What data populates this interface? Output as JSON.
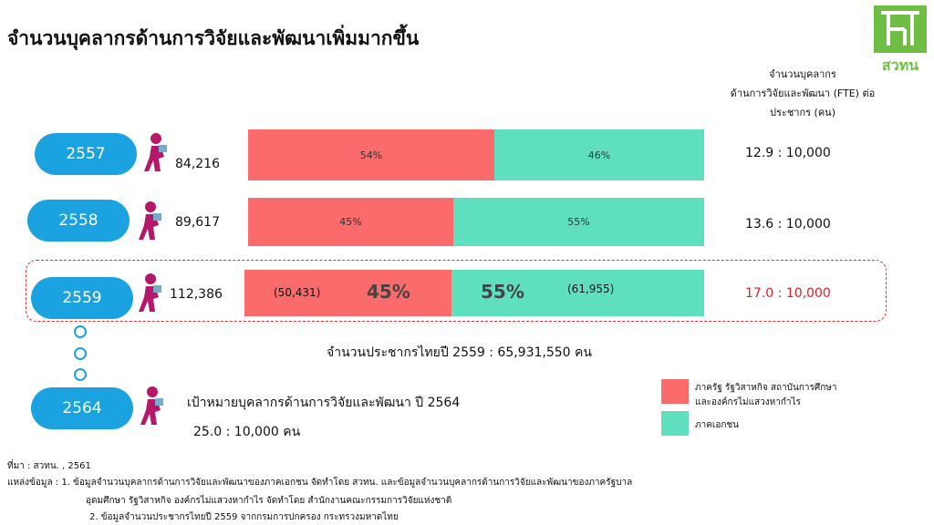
{
  "title": "จำนวนบุคลากรด้านการวิจัยและพัฒนาเพิ่มมากขึ้น",
  "logo": "สวทน",
  "ratio_header": [
    "จำนวนบุคลากร",
    "ด้านการวิจัยและพัฒนา (FTE) ต่อ",
    "ประชากร (คน)"
  ],
  "rows": [
    {
      "year": "2557",
      "total": "84,216",
      "public": 54,
      "public_label": "54%",
      "private": 46,
      "private_label": "46%",
      "ratio": "12.9 : 10,000"
    },
    {
      "year": "2558",
      "total": "89,617",
      "public": 45,
      "public_label": "45%",
      "private": 55,
      "private_label": "55%",
      "ratio": "13.6 : 10,000"
    },
    {
      "year": "2559",
      "total": "112,386",
      "public": 45,
      "public_label": "45%",
      "private": 55,
      "private_label": "55%",
      "public_count": "(50,431)",
      "private_count": "(61,955)",
      "ratio": "17.0 : 10,000"
    }
  ],
  "population": "จำนวนประชากรไทยปี 2559 :  65,931,550 คน",
  "target": {
    "year": "2564",
    "text": "เป้าหมายบุคลากรด้านการวิจัยและพัฒนา  ปี 2564",
    "ratio": "25.0 : 10,000 คน"
  },
  "legend": [
    {
      "lines": [
        "ภาครัฐ รัฐวิสาหกิจ สถาบันการศึกษา",
        "และองค์กรไม่แสวงหากำไร"
      ],
      "color": "#fb6b6b"
    },
    {
      "lines": [
        "ภาคเอกชน"
      ],
      "color": "#5ee0bf"
    }
  ],
  "source": [
    "ที่มา : สวทน. , 2561",
    "แหล่งข้อมูล : 1. ข้อมูลจำนวนบุคลากรด้านการวิจัยและพัฒนาของภาคเอกชน จัดทำโดย สวทน. และข้อมูลจำนวนบุคลากรด้านการวิจัยและพัฒนาของภาครัฐบาล",
    "อุดมศึกษา รัฐวิสาหกิจ องค์กรไม่แสวงหากำไร จัดทำโดย สำนักงานคณะกรรมการวิจัยแห่งชาติ",
    "2. ข้อมูลจำนวนประชากรไทยปี 2559 จากกรมการปกครอง กระทรวงมหาดไทย"
  ]
}
